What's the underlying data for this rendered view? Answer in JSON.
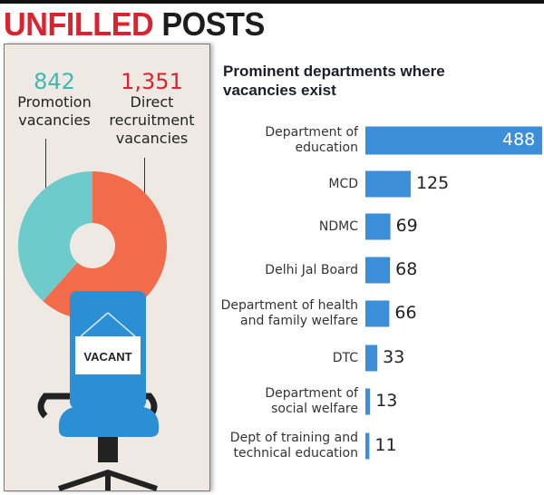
{
  "title": {
    "part1": "UNFILLED",
    "part2": "POSTS"
  },
  "donut": {
    "promotion": {
      "value": "842",
      "label": "Promotion vacancies",
      "color": "#6ecbcb"
    },
    "direct": {
      "value": "1,351",
      "label": "Direct recruitment vacancies",
      "color": "#f26b4b"
    },
    "sign": "VACANT"
  },
  "chart_data": {
    "type": "bar",
    "orientation": "horizontal",
    "title": "Prominent departments where vacancies exist",
    "categories": [
      "Department of education",
      "MCD",
      "NDMC",
      "Delhi Jal Board",
      "Department of health and family welfare",
      "DTC",
      "Department of social welfare",
      "Dept of training and technical education"
    ],
    "label_lines": [
      [
        "Department of",
        "education"
      ],
      [
        "MCD"
      ],
      [
        "NDMC"
      ],
      [
        "Delhi Jal Board"
      ],
      [
        "Department of health",
        "and family welfare"
      ],
      [
        "DTC"
      ],
      [
        "Department of",
        "social welfare"
      ],
      [
        "Dept of training and",
        "technical education"
      ]
    ],
    "values": [
      488,
      125,
      69,
      68,
      66,
      33,
      13,
      11
    ],
    "color": "#3d8ed8",
    "grid": false
  }
}
